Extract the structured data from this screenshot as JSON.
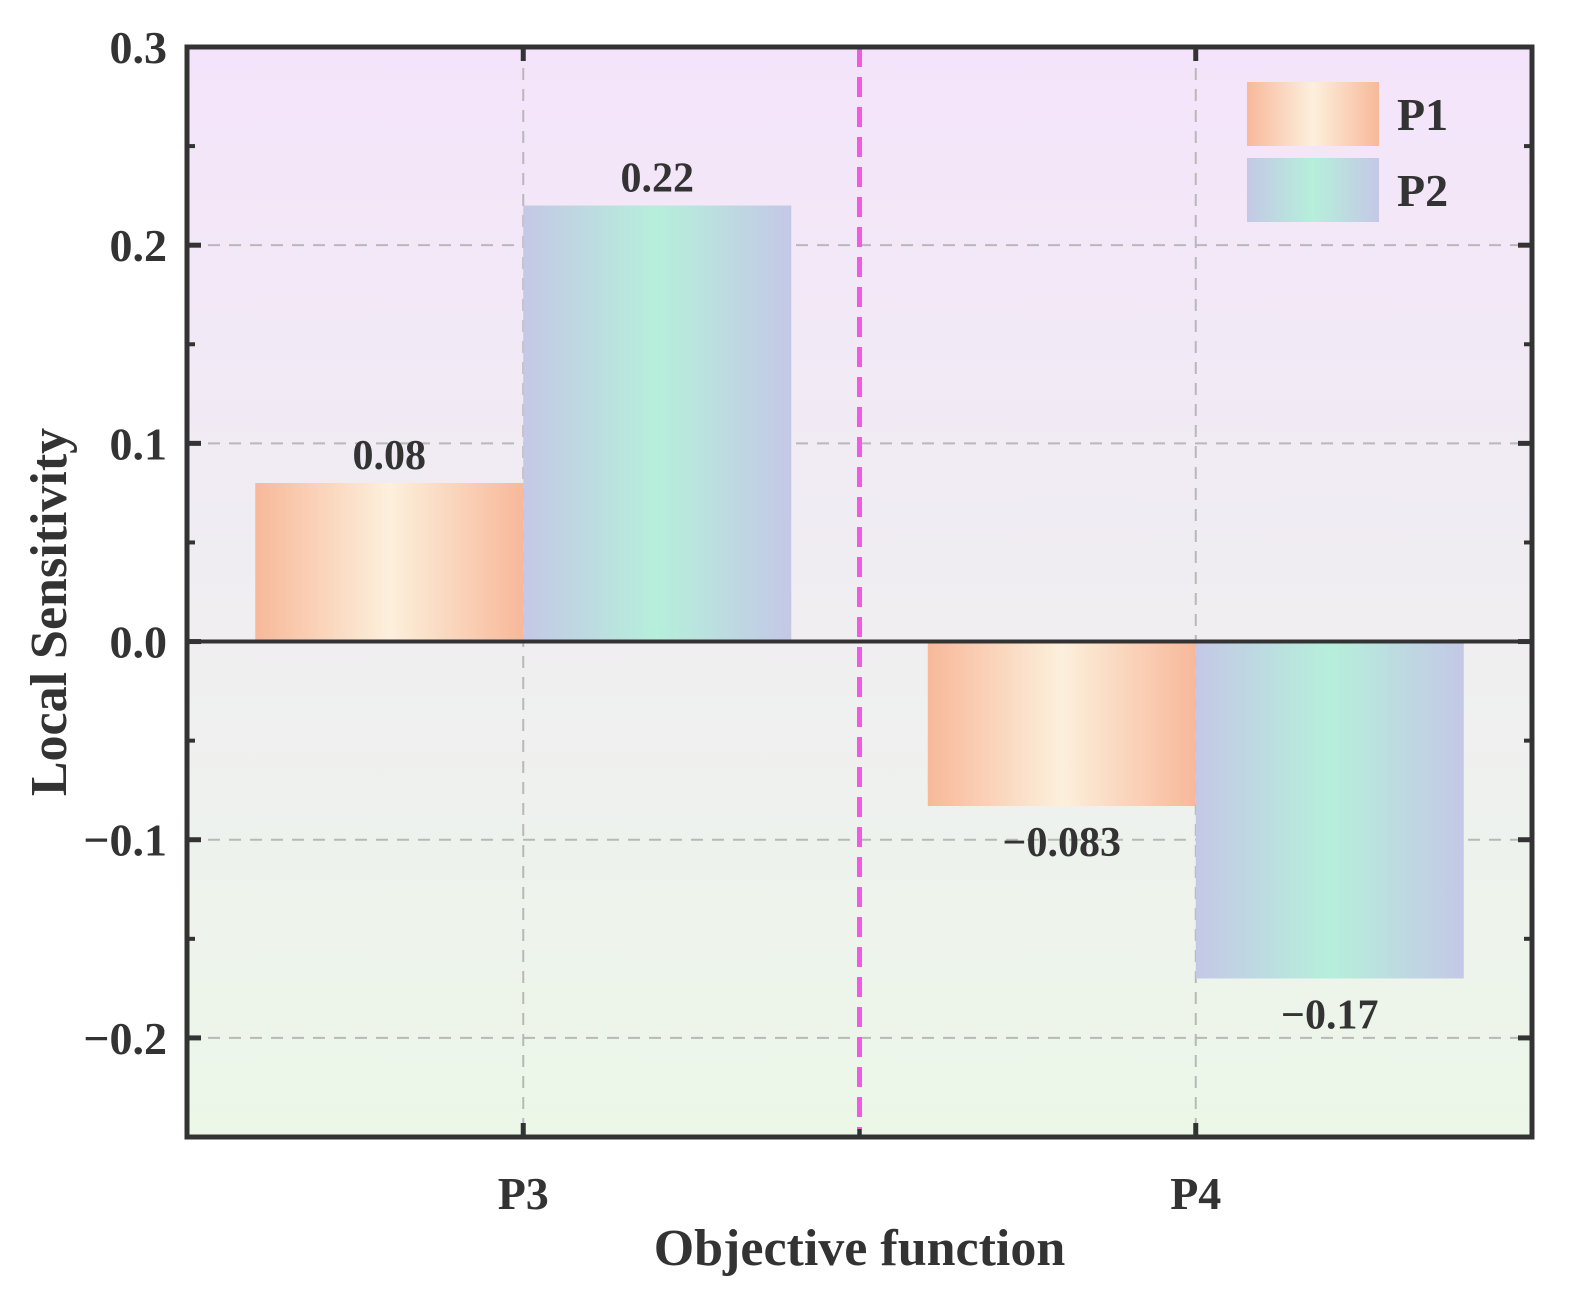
{
  "chart_data": {
    "type": "bar",
    "title": "",
    "xlabel": "Objective function",
    "ylabel": "Local Sensitivity",
    "categories": [
      "P3",
      "P4"
    ],
    "series": [
      {
        "name": "P1",
        "values": [
          0.08,
          -0.083
        ],
        "labels": [
          "0.08",
          "−0.083"
        ]
      },
      {
        "name": "P2",
        "values": [
          0.22,
          -0.17
        ],
        "labels": [
          "0.22",
          "−0.17"
        ]
      }
    ],
    "ylim": [
      -0.25,
      0.3
    ],
    "yticks": [
      -0.2,
      -0.1,
      0.0,
      0.1,
      0.2,
      0.3
    ],
    "ytick_labels": [
      "−0.2",
      "−0.1",
      "0.0",
      "0.1",
      "0.2",
      "0.3"
    ],
    "grid": true,
    "legend_position": "top-right",
    "colors": {
      "p1_edge": "#f8b89a",
      "p1_center": "#fcf0dc",
      "p2_edge": "#c4c8e6",
      "p2_center": "#b6efdb",
      "bg_top": "#f4e4fb",
      "bg_bottom": "#ecf7e8",
      "separator": "#ef5ce3",
      "axis": "#333333",
      "grid": "#b8b8b8"
    }
  }
}
